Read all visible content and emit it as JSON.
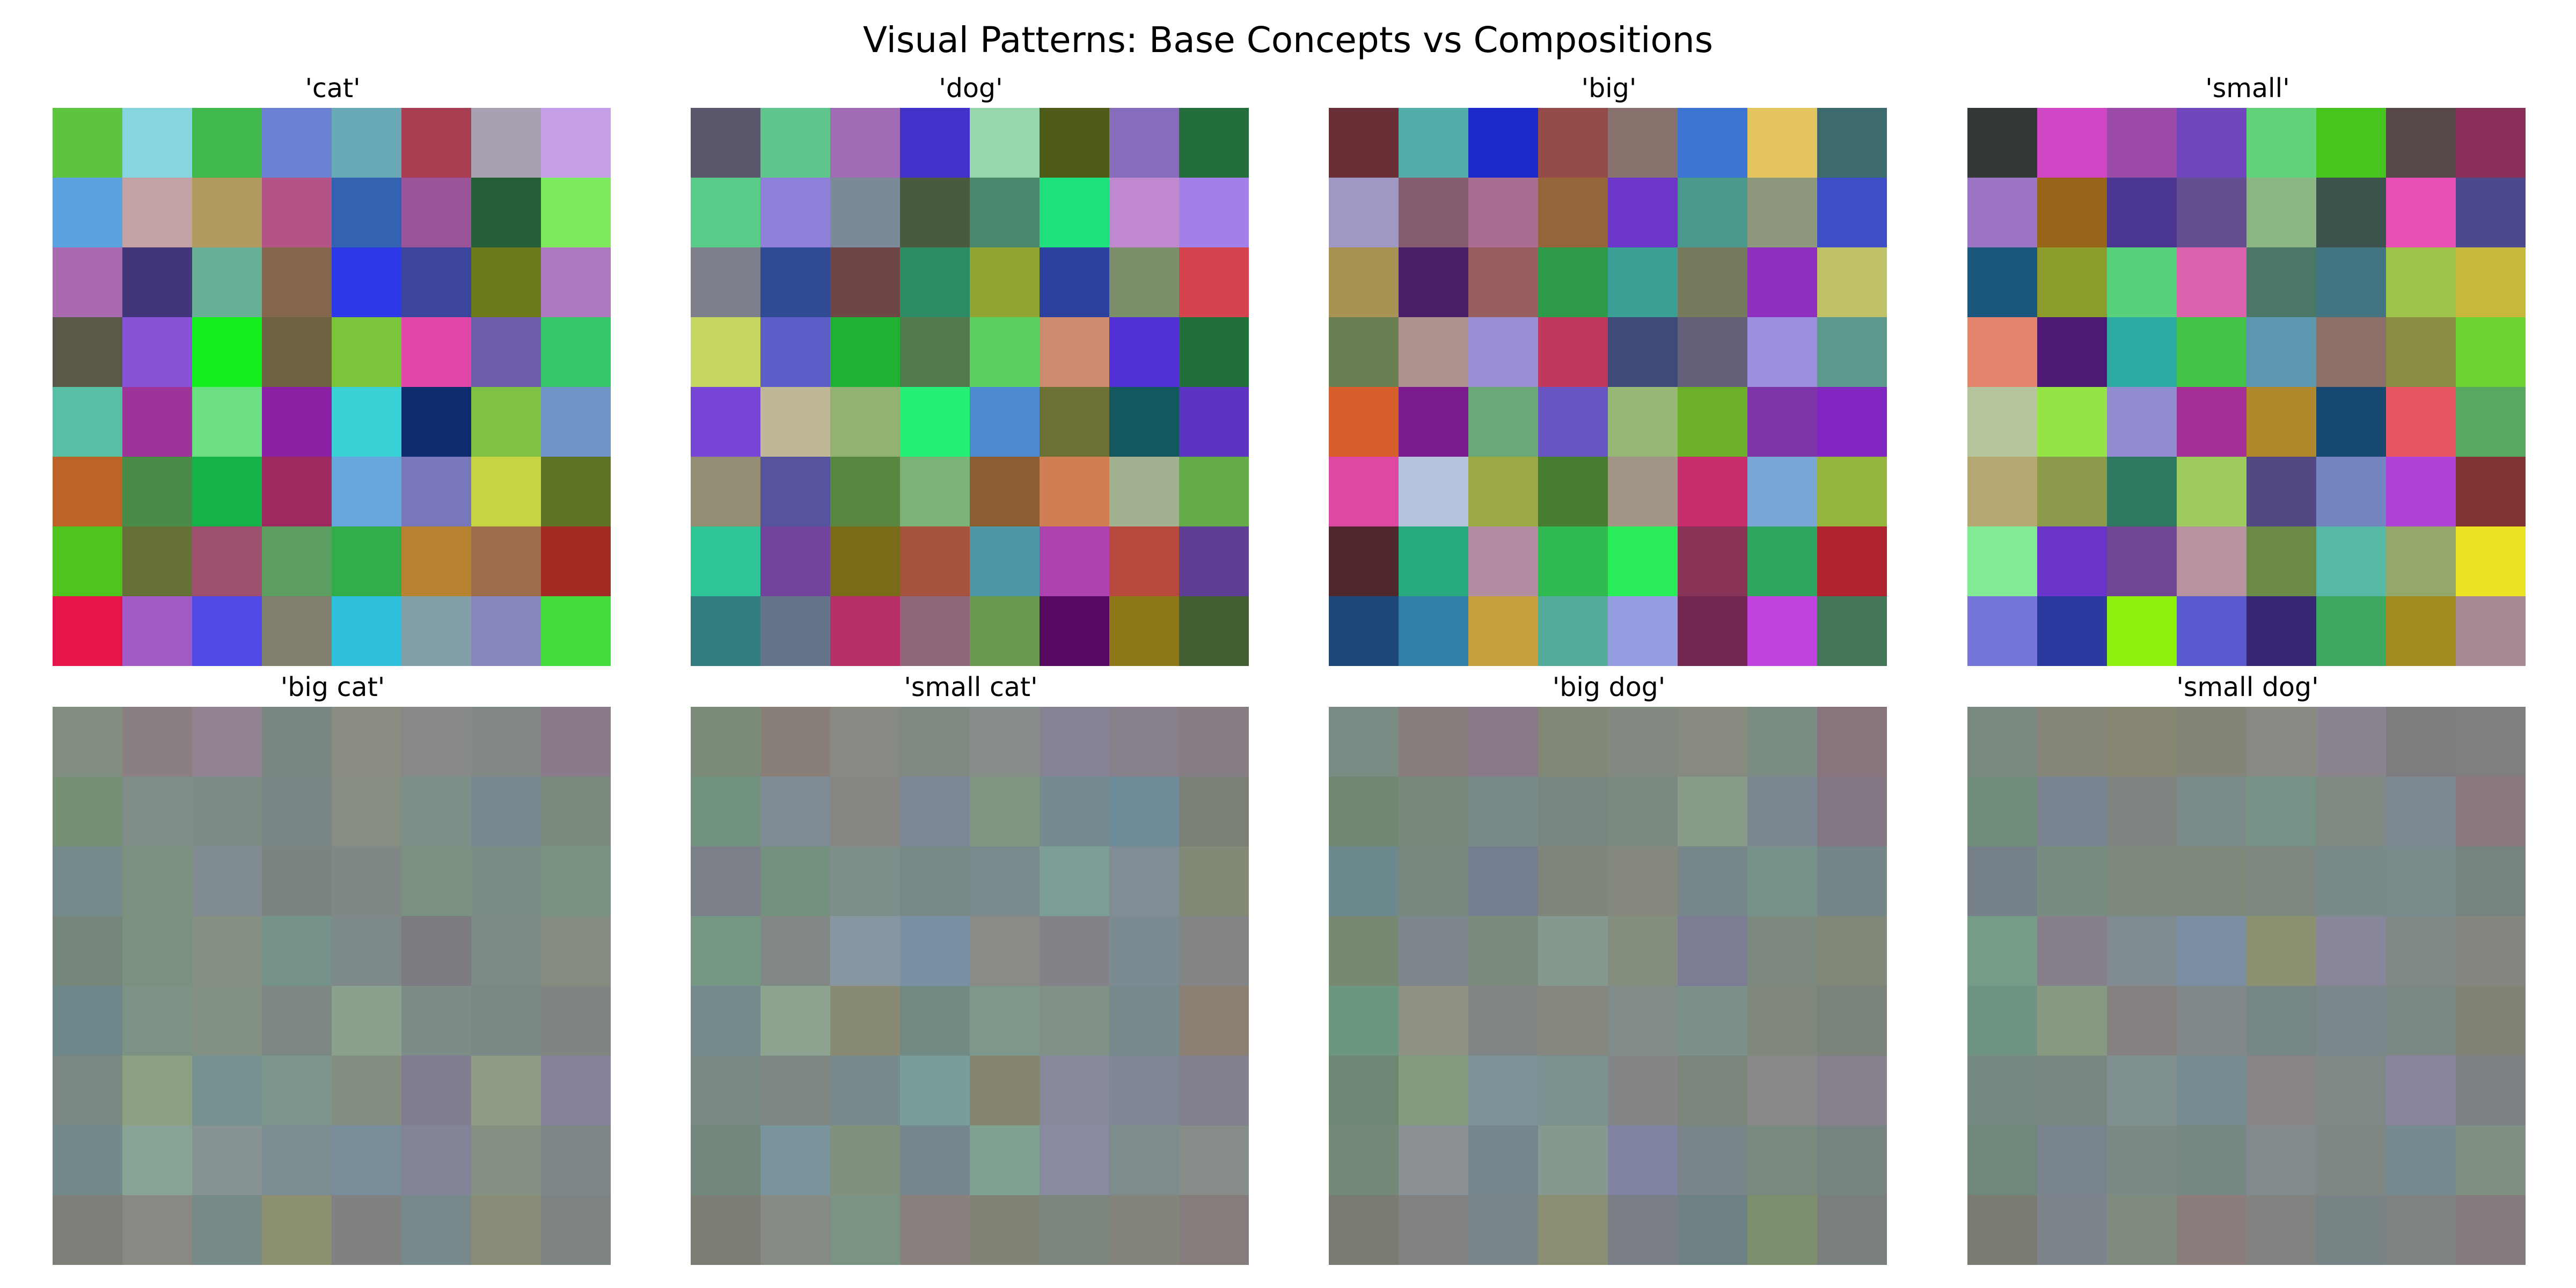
{
  "title": "Visual Patterns: Base Concepts vs Compositions",
  "chart_data": [
    {
      "type": "heatmap",
      "title": "'cat'",
      "cells": [
        [
          "#5ec440",
          "#87d5e1",
          "#42b94f",
          "#6b82d4",
          "#6aa9b6",
          "#a83e52",
          "#a7a1b2",
          "#c5a0e8"
        ],
        [
          "#5ba2e1",
          "#c3a2a6",
          "#b19a60",
          "#b45486",
          "#3462b2",
          "#9b5499",
          "#265e37",
          "#7ee95f"
        ],
        [
          "#a96ab0",
          "#43357a",
          "#6aaf97",
          "#84674c",
          "#2d39e9",
          "#3c459c",
          "#6c7a1c",
          "#ae78be"
        ],
        [
          "#5a5849",
          "#8753d7",
          "#13f01e",
          "#6d6241",
          "#7cc53b",
          "#e146a9",
          "#6e5ba9",
          "#36c76a"
        ],
        [
          "#58bea4",
          "#9d3499",
          "#6ddf83",
          "#8b22a5",
          "#38d1d6",
          "#0f2b70",
          "#7fc143",
          "#6f94c8"
        ],
        [
          "#bb6328",
          "#4a8b47",
          "#15b24a",
          "#9e2a5f",
          "#65a6dc",
          "#7877b9",
          "#c7d544",
          "#5d7426"
        ],
        [
          "#4dc41f",
          "#677036",
          "#9e4e6e",
          "#5c9f60",
          "#33ad4a",
          "#b88330",
          "#9c6e4c",
          "#a22c24"
        ],
        [
          "#e5154c",
          "#a05bc5",
          "#4f4ae5",
          "#817f6c",
          "#2ebfdb",
          "#82a0a8",
          "#8786bc",
          "#43dc3a"
        ]
      ]
    },
    {
      "type": "heatmap",
      "title": "'dog'",
      "cells": [
        [
          "#5a566b",
          "#5ec58c",
          "#a26bb5",
          "#4232ca",
          "#96d7ab",
          "#4e5c17",
          "#866dbc",
          "#236e3b"
        ],
        [
          "#57cb87",
          "#8f7fdb",
          "#7b8a98",
          "#4a5a3e",
          "#49896e",
          "#1ee07c",
          "#c088cf",
          "#a180e9"
        ],
        [
          "#7c7e8a",
          "#2f4b93",
          "#6f4646",
          "#2c8c64",
          "#91a434",
          "#2a419e",
          "#7a8f6a",
          "#d3444f"
        ],
        [
          "#c7d561",
          "#5b5ec6",
          "#1fb034",
          "#537a4c",
          "#5bcf5f",
          "#cc8b6f",
          "#5131d6",
          "#236f39"
        ],
        [
          "#7746d6",
          "#c0b798",
          "#91b272",
          "#25ef75",
          "#4e8ad0",
          "#6d7033",
          "#13585e",
          "#5b35c1"
        ],
        [
          "#938e73",
          "#55549d",
          "#5a8740",
          "#7bb277",
          "#8c5d31",
          "#d07e54",
          "#a2b291",
          "#62ab46"
        ],
        [
          "#2fc596",
          "#73449d",
          "#7a6b18",
          "#a5523f",
          "#4d97a7",
          "#ad42ae",
          "#b7493d",
          "#5d4096"
        ],
        [
          "#327d7f",
          "#64758b",
          "#b62f67",
          "#8e677a",
          "#679a4f",
          "#560961",
          "#8d7719",
          "#425f33"
        ]
      ]
    },
    {
      "type": "heatmap",
      "title": "'big'",
      "cells": [
        [
          "#6a2e37",
          "#51aea9",
          "#1c2ac9",
          "#944b49",
          "#89716e",
          "#3b74d3",
          "#e4c45e",
          "#3d6b6d"
        ],
        [
          "#9f98c2",
          "#855c70",
          "#aa6c90",
          "#966539",
          "#6d36c9",
          "#49988b",
          "#8d977c",
          "#3e4ec5"
        ],
        [
          "#a89355",
          "#4b1e6a",
          "#985d5d",
          "#2e9b4a",
          "#3b9f95",
          "#787a5d",
          "#8e2fbf",
          "#bfc266"
        ],
        [
          "#6a7f52",
          "#ae9290",
          "#9a8fd4",
          "#bf395e",
          "#3e4a78",
          "#63607a",
          "#9a90df",
          "#5c9a8d"
        ],
        [
          "#d75d2a",
          "#7b1c8e",
          "#6ca778",
          "#6755c3",
          "#97b777",
          "#6cb02a",
          "#7e35a7",
          "#8226c1"
        ],
        [
          "#de48a5",
          "#b6c3dc",
          "#9ca844",
          "#487d30",
          "#a19685",
          "#c92e6c",
          "#7aa6d6",
          "#95b43b"
        ],
        [
          "#4f272d",
          "#27a97f",
          "#b28da2",
          "#31ba4f",
          "#28ed58",
          "#8a3557",
          "#2ea55f",
          "#b0242f"
        ],
        [
          "#1d4878",
          "#317ea8",
          "#c59f3b",
          "#52ac99",
          "#939de0",
          "#722752",
          "#c042df",
          "#447658"
        ]
      ]
    },
    {
      "type": "heatmap",
      "title": "'small'",
      "cells": [
        [
          "#333737",
          "#d046c4",
          "#9c4aa8",
          "#7147bd",
          "#5fd27a",
          "#46c51f",
          "#564848",
          "#8a2f5a"
        ],
        [
          "#9b74c4",
          "#97641a",
          "#4b3593",
          "#634e92",
          "#8cb784",
          "#3c524d",
          "#e950b5",
          "#4c4a8e"
        ],
        [
          "#1b567d",
          "#8b9c2c",
          "#58d17d",
          "#dc62ad",
          "#4c7766",
          "#427581",
          "#9fc24a",
          "#c8b83c"
        ],
        [
          "#e3846d",
          "#4e1975",
          "#2eaba3",
          "#42c348",
          "#5b98b0",
          "#8d6f69",
          "#8a8e43",
          "#6ed434"
        ],
        [
          "#b6c49e",
          "#95e445",
          "#908ccf",
          "#a43096",
          "#b0872a",
          "#154971",
          "#e75663",
          "#59a761"
        ],
        [
          "#b6a872",
          "#8c9a4c",
          "#2f7862",
          "#9dcb5c",
          "#524983",
          "#7485c0",
          "#ae42d7",
          "#823334"
        ],
        [
          "#80eb94",
          "#6a34ca",
          "#6f4691",
          "#b6939e",
          "#6b8a45",
          "#55b9a5",
          "#93a86a",
          "#ebe223"
        ],
        [
          "#7675d9",
          "#2a3a9e",
          "#8ff20e",
          "#5958cc",
          "#372576",
          "#3ea860",
          "#a48b20",
          "#a88996"
        ]
      ]
    },
    {
      "type": "heatmap",
      "title": "'big cat'",
      "cells": [
        [
          "#818d7f",
          "#8b8081",
          "#918390",
          "#7a8681",
          "#8b8b81",
          "#868988",
          "#818886",
          "#8b7a8a"
        ],
        [
          "#769075",
          "#808c87",
          "#7e8c85",
          "#7b8787",
          "#868d81",
          "#7d8f88",
          "#798992",
          "#7d8b7f"
        ],
        [
          "#758a8c",
          "#7b907f",
          "#7f8b8f",
          "#7b857f",
          "#808885",
          "#7a9080",
          "#7b8c86",
          "#79917f"
        ],
        [
          "#77867b",
          "#7a9180",
          "#858f82",
          "#74928a",
          "#7e8989",
          "#7b7b81",
          "#7c8b88",
          "#848b7f"
        ],
        [
          "#6d878a",
          "#7b9284",
          "#829083",
          "#7d8885",
          "#8ba18d",
          "#7e8c88",
          "#7b8886",
          "#7f8682"
        ],
        [
          "#7c8882",
          "#8fa082",
          "#779090",
          "#7c958b",
          "#848e80",
          "#817e93",
          "#8e9c84",
          "#85839b"
        ],
        [
          "#74898b",
          "#87a395",
          "#879393",
          "#7c8d91",
          "#798c9a",
          "#818597",
          "#849081",
          "#7f8789"
        ],
        [
          "#7f7f7a",
          "#8a8883",
          "#788a87",
          "#8c8f70",
          "#828182",
          "#77898a",
          "#8b8c77",
          "#7e8384"
        ]
      ]
    },
    {
      "type": "heatmap",
      "title": "'small cat'",
      "cells": [
        [
          "#7d8b7b",
          "#887f78",
          "#878983",
          "#7f8a82",
          "#878d89",
          "#868494",
          "#88808a",
          "#867d85"
        ],
        [
          "#70927e",
          "#7f8c96",
          "#878683",
          "#7d8896",
          "#819682",
          "#748c91",
          "#6e8c99",
          "#7b8076"
        ],
        [
          "#7b8089",
          "#73917e",
          "#7d8e8b",
          "#788a87",
          "#7b8a8d",
          "#7c9e97",
          "#808d94",
          "#828976"
        ],
        [
          "#759784",
          "#828984",
          "#8896a1",
          "#788fa4",
          "#8a8b85",
          "#838288",
          "#7c8a92",
          "#828485"
        ],
        [
          "#748a8c",
          "#8ca48f",
          "#888a74",
          "#718b84",
          "#7d988b",
          "#819087",
          "#76898d",
          "#8b8073"
        ],
        [
          "#7a8986",
          "#7f8783",
          "#788b8c",
          "#799d98",
          "#86866e",
          "#87889b",
          "#7f8794",
          "#828190"
        ],
        [
          "#73887c",
          "#79959b",
          "#80907c",
          "#76868d",
          "#80a190",
          "#888b9f",
          "#7e8c8b",
          "#868c88"
        ],
        [
          "#7b7d74",
          "#868a84",
          "#7a9383",
          "#8a807e",
          "#818475",
          "#7d867e",
          "#85847b",
          "#857c7c"
        ]
      ]
    },
    {
      "type": "heatmap",
      "title": "'big dog'",
      "cells": [
        [
          "#7a8c83",
          "#867d7c",
          "#8a7a88",
          "#828877",
          "#838a82",
          "#868a7f",
          "#7b8c82",
          "#87747c"
        ],
        [
          "#728772",
          "#7a897c",
          "#778c88",
          "#788780",
          "#7b8981",
          "#889a88",
          "#7d8792",
          "#847784"
        ],
        [
          "#6c898d",
          "#78887e",
          "#767f91",
          "#808579",
          "#85897d",
          "#77878a",
          "#77918b",
          "#748687"
        ],
        [
          "#788873",
          "#7d868a",
          "#7d8b7d",
          "#85998e",
          "#848e7f",
          "#7c7d95",
          "#7e897f",
          "#818779"
        ],
        [
          "#6b977f",
          "#8f9282",
          "#808686",
          "#86887f",
          "#808b8a",
          "#7b8f8b",
          "#80887e",
          "#7b847b"
        ],
        [
          "#6e8876",
          "#849d7d",
          "#7b9397",
          "#7a918f",
          "#838586",
          "#7d867c",
          "#8a8989",
          "#86818c"
        ],
        [
          "#758978",
          "#8b9094",
          "#77868c",
          "#87988f",
          "#8083a1",
          "#798589",
          "#7b8a7e",
          "#768380"
        ],
        [
          "#7a7c74",
          "#828283",
          "#788689",
          "#8b8f71",
          "#7a7f85",
          "#6e8184",
          "#7e8f6e",
          "#787f7d"
        ]
      ]
    },
    {
      "type": "heatmap",
      "title": "'small dog'",
      "cells": [
        [
          "#7b8a80",
          "#85857a",
          "#878673",
          "#838578",
          "#888983",
          "#8a848e",
          "#7d7c7e",
          "#817f7d"
        ],
        [
          "#708e7a",
          "#798490",
          "#7e8480",
          "#7b8b8a",
          "#769185",
          "#7f8a83",
          "#7d8892",
          "#89797f"
        ],
        [
          "#758089",
          "#788c80",
          "#7c897c",
          "#7c897b",
          "#7e8780",
          "#7a8a88",
          "#798c8c",
          "#77837e"
        ],
        [
          "#759c87",
          "#86808b",
          "#808c92",
          "#7b8da0",
          "#8a9070",
          "#87869b",
          "#7f8a87",
          "#838780"
        ],
        [
          "#6f9483",
          "#889981",
          "#878282",
          "#80888a",
          "#778687",
          "#7b878a",
          "#7c8884",
          "#838277"
        ],
        [
          "#778983",
          "#788780",
          "#809090",
          "#778c90",
          "#888488",
          "#808987",
          "#8b849e",
          "#7c8185"
        ],
        [
          "#70877b",
          "#7a848e",
          "#7c8a84",
          "#778782",
          "#838a8e",
          "#7e8783",
          "#768b91",
          "#7f8f82"
        ],
        [
          "#7b7b72",
          "#7d848c",
          "#7f8b7e",
          "#8a7d7b",
          "#818381",
          "#788386",
          "#808383",
          "#827a7b"
        ]
      ]
    }
  ]
}
